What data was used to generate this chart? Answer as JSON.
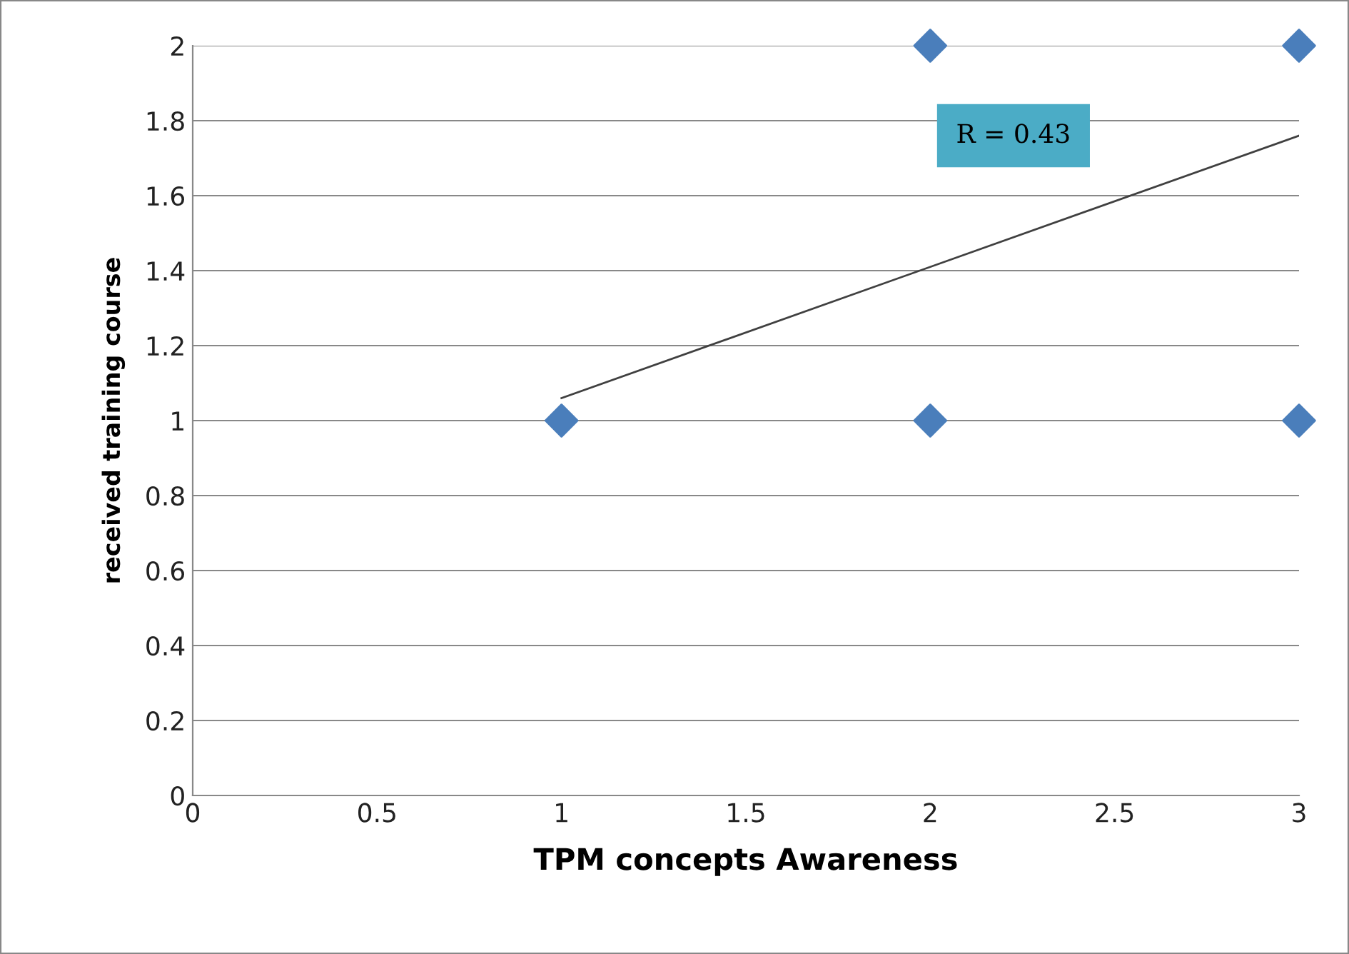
{
  "chart_data": {
    "type": "scatter",
    "xlabel": "TPM concepts Awareness",
    "ylabel": "received training course",
    "series": [
      {
        "color": "#4a7ebb",
        "marker": "diamond",
        "x": [
          1,
          2,
          2,
          3,
          3
        ],
        "values": [
          1,
          2,
          1,
          2,
          1
        ]
      },
      {
        "type": "line",
        "color": "#404040",
        "marker": "none",
        "line_style": "solid",
        "x": [
          1,
          3
        ],
        "values": [
          1.06,
          1.76
        ]
      }
    ],
    "annotations": [
      "R = 0.43"
    ],
    "xlim": [
      0,
      3
    ],
    "xticks": [
      0,
      0.5,
      1,
      1.5,
      2,
      2.5,
      3
    ],
    "ylim": [
      0,
      2
    ],
    "yticks": [
      0,
      0.2,
      0.4,
      0.6,
      0.8,
      1,
      1.2,
      1.4,
      1.6,
      1.8,
      2
    ],
    "grid": "y",
    "legend": false
  }
}
